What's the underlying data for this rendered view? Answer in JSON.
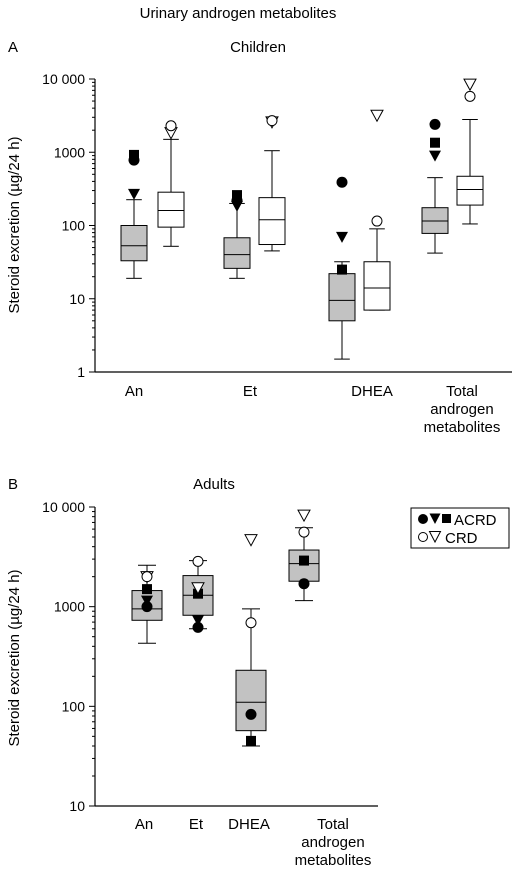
{
  "figure_title": "Urinary androgen metabolites",
  "legend": {
    "acrd_label": "ACRD",
    "crd_label": "CRD"
  },
  "colors": {
    "acrd_box": "#c2c2c2",
    "crd_box": "#ffffff",
    "line": "#000000"
  },
  "chart_data": [
    {
      "panel": "A",
      "type": "box",
      "title": "Children",
      "ylabel": "Steroid excretion (µg/24 h)",
      "yscale": "log",
      "ylim": [
        1,
        10000
      ],
      "yticks": [
        1,
        10,
        100,
        1000,
        10000
      ],
      "ytick_labels": [
        "1",
        "10",
        "100",
        "1000",
        "10 000"
      ],
      "categories": [
        "An",
        "Et",
        "DHEA",
        "Total androgen metabolites"
      ],
      "series": [
        {
          "name": "ACRD",
          "boxes": [
            {
              "whisker_low": 19,
              "q1": 33,
              "median": 53,
              "q3": 100,
              "whisker_high": 225,
              "outliers": [
                {
                  "marker": "triangle-down",
                  "value": 270
                },
                {
                  "marker": "circle",
                  "value": 780
                },
                {
                  "marker": "square",
                  "value": 920
                }
              ]
            },
            {
              "whisker_low": 19,
              "q1": 26,
              "median": 40,
              "q3": 68,
              "whisker_high": 200,
              "outliers": [
                {
                  "marker": "triangle-down",
                  "value": 185
                },
                {
                  "marker": "circle",
                  "value": 220
                },
                {
                  "marker": "square",
                  "value": 260
                }
              ]
            },
            {
              "whisker_low": 1.5,
              "q1": 5,
              "median": 9.5,
              "q3": 22,
              "whisker_high": 32,
              "outliers": [
                {
                  "marker": "square",
                  "value": 25
                },
                {
                  "marker": "triangle-down",
                  "value": 70
                },
                {
                  "marker": "circle",
                  "value": 390
                }
              ]
            },
            {
              "whisker_low": 42,
              "q1": 78,
              "median": 115,
              "q3": 175,
              "whisker_high": 450,
              "outliers": [
                {
                  "marker": "triangle-down",
                  "value": 900
                },
                {
                  "marker": "square",
                  "value": 1350
                },
                {
                  "marker": "circle",
                  "value": 2400
                }
              ]
            }
          ]
        },
        {
          "name": "CRD",
          "boxes": [
            {
              "whisker_low": 52,
              "q1": 95,
              "median": 160,
              "q3": 285,
              "whisker_high": 1500,
              "outliers": [
                {
                  "marker": "triangle-down",
                  "value": 1850
                },
                {
                  "marker": "circle",
                  "value": 2300
                }
              ]
            },
            {
              "whisker_low": 45,
              "q1": 55,
              "median": 120,
              "q3": 240,
              "whisker_high": 1050,
              "outliers": [
                {
                  "marker": "triangle-down",
                  "value": 2600
                },
                {
                  "marker": "circle",
                  "value": 2700
                }
              ]
            },
            {
              "whisker_low": 7,
              "q1": 7,
              "median": 14,
              "q3": 32,
              "whisker_high": 90,
              "outliers": [
                {
                  "marker": "circle",
                  "value": 115
                },
                {
                  "marker": "triangle-down",
                  "value": 3200
                }
              ]
            },
            {
              "whisker_low": 105,
              "q1": 190,
              "median": 310,
              "q3": 470,
              "whisker_high": 2800,
              "outliers": [
                {
                  "marker": "circle",
                  "value": 5800
                },
                {
                  "marker": "triangle-down",
                  "value": 8500
                }
              ]
            }
          ]
        }
      ]
    },
    {
      "panel": "B",
      "type": "box",
      "title": "Adults",
      "ylabel": "Steroid excretion (µg/24 h)",
      "yscale": "log",
      "ylim": [
        10,
        10000
      ],
      "yticks": [
        10,
        100,
        1000,
        10000
      ],
      "ytick_labels": [
        "10",
        "100",
        "1000",
        "10 000"
      ],
      "categories": [
        "An",
        "Et",
        "DHEA",
        "Total androgen metabolites"
      ],
      "series": [
        {
          "name": "ACRD",
          "boxes": [
            {
              "whisker_low": 430,
              "q1": 730,
              "median": 950,
              "q3": 1450,
              "whisker_high": 2600,
              "points": [
                {
                  "marker": "circle",
                  "value": 1000
                },
                {
                  "marker": "triangle-down",
                  "value": 1150
                },
                {
                  "marker": "square",
                  "value": 1500
                }
              ]
            },
            {
              "whisker_low": 600,
              "q1": 820,
              "median": 1300,
              "q3": 2050,
              "whisker_high": 2900,
              "points": [
                {
                  "marker": "circle",
                  "value": 620
                },
                {
                  "marker": "triangle-down",
                  "value": 730
                },
                {
                  "marker": "square",
                  "value": 1350
                }
              ]
            },
            {
              "whisker_low": 40,
              "q1": 57,
              "median": 110,
              "q3": 230,
              "whisker_high": 950,
              "points": [
                {
                  "marker": "square",
                  "value": 45
                },
                {
                  "marker": "circle",
                  "value": 83
                }
              ]
            },
            {
              "whisker_low": 1150,
              "q1": 1800,
              "median": 2700,
              "q3": 3700,
              "whisker_high": 6200,
              "points": [
                {
                  "marker": "circle",
                  "value": 1700
                },
                {
                  "marker": "square",
                  "value": 2900
                }
              ]
            }
          ]
        },
        {
          "name": "CRD",
          "points": [
            [
              {
                "marker": "triangle-down",
                "value": 2000
              },
              {
                "marker": "circle",
                "value": 2000
              }
            ],
            [
              {
                "marker": "triangle-down",
                "value": 1550
              },
              {
                "marker": "circle",
                "value": 2850
              }
            ],
            [
              {
                "marker": "circle",
                "value": 690
              },
              {
                "marker": "triangle-down",
                "value": 4700
              }
            ],
            [
              {
                "marker": "circle",
                "value": 5600
              },
              {
                "marker": "triangle-down",
                "value": 8300
              }
            ]
          ]
        }
      ]
    }
  ]
}
